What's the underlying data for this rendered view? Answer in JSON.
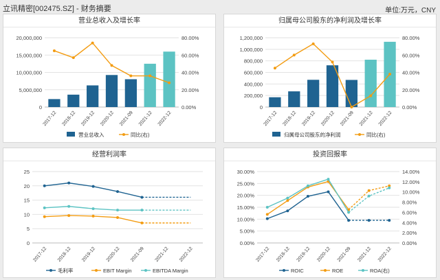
{
  "header": {
    "title": "立讯精密[002475.SZ] - 财务摘要",
    "unit": "单位:万元，CNY"
  },
  "chart_data": [
    {
      "type": "bar",
      "title": "营业总收入及增长率",
      "categories": [
        "2017-12",
        "2018-12",
        "2019-12",
        "2020-12",
        "2021-09",
        "2021-12",
        "2022-12"
      ],
      "series": [
        {
          "name": "营业总收入",
          "kind": "bar",
          "axis": "left",
          "values": [
            2300000,
            3580000,
            6250000,
            9250000,
            8030000,
            12500000,
            16000000
          ],
          "colors": [
            "#1f6391",
            "#1f6391",
            "#1f6391",
            "#1f6391",
            "#1f6391",
            "#5cc3c3",
            "#5cc3c3"
          ]
        },
        {
          "name": "同比(右)",
          "kind": "line",
          "axis": "right",
          "color": "#f39c12",
          "values": [
            65,
            57,
            74,
            48,
            36,
            36,
            28
          ]
        }
      ],
      "yleft": {
        "min": 0,
        "max": 20000000,
        "ticks": [
          "0",
          "5,000,000",
          "10,000,000",
          "15,000,000",
          "20,000,000"
        ]
      },
      "yright": {
        "min": 0,
        "max": 80,
        "ticks": [
          "0.00%",
          "20.00%",
          "40.00%",
          "60.00%",
          "80.00%"
        ]
      }
    },
    {
      "type": "bar",
      "title": "归属母公司股东的净利润及增长率",
      "categories": [
        "2017-12",
        "2018-12",
        "2019-12",
        "2020-12",
        "2021-09",
        "2021-12",
        "2022-12"
      ],
      "series": [
        {
          "name": "归属母公司股东的净利润",
          "kind": "bar",
          "axis": "left",
          "values": [
            170000,
            272000,
            472000,
            723000,
            470000,
            820000,
            1130000
          ],
          "colors": [
            "#1f6391",
            "#1f6391",
            "#1f6391",
            "#1f6391",
            "#1f6391",
            "#5cc3c3",
            "#5cc3c3"
          ]
        },
        {
          "name": "同比(右)",
          "kind": "line",
          "axis": "right",
          "color": "#f39c12",
          "values": [
            45,
            60,
            73,
            52,
            0,
            13,
            38
          ]
        }
      ],
      "yleft": {
        "min": 0,
        "max": 1200000,
        "ticks": [
          "0",
          "200,000",
          "400,000",
          "600,000",
          "800,000",
          "1,000,000",
          "1,200,000"
        ]
      },
      "yright": {
        "min": 0,
        "max": 80,
        "ticks": [
          "0.00%",
          "20.00%",
          "40.00%",
          "60.00%",
          "80.00%"
        ]
      }
    },
    {
      "type": "line",
      "title": "经营利润率",
      "categories": [
        "2017-12",
        "2018-12",
        "2019-12",
        "2020-12",
        "2021-09",
        "2021-12",
        "2022-12"
      ],
      "series": [
        {
          "name": "毛利率",
          "axis": "left",
          "color": "#1f6391",
          "values": [
            20,
            21,
            19.8,
            18,
            16,
            16,
            16
          ]
        },
        {
          "name": "EBIT Margin",
          "axis": "left",
          "color": "#f39c12",
          "values": [
            9.2,
            9.6,
            9.4,
            8.9,
            7.0,
            7.0,
            7.0
          ]
        },
        {
          "name": "EBITDA Margin",
          "axis": "left",
          "color": "#5cc3c3",
          "values": [
            12.3,
            12.8,
            12.0,
            11.5,
            11.5,
            11.5,
            11.5
          ]
        }
      ],
      "yleft": {
        "min": 0,
        "max": 25,
        "ticks": [
          "0",
          "5",
          "10",
          "15",
          "20",
          "25"
        ]
      }
    },
    {
      "type": "line",
      "title": "投资回报率",
      "categories": [
        "2017-12",
        "2018-12",
        "2019-12",
        "2020-12",
        "2021-09",
        "2021-12",
        "2022-12"
      ],
      "series": [
        {
          "name": "ROIC",
          "axis": "left",
          "color": "#1f6391",
          "values": [
            10.2,
            13.5,
            19.6,
            21.5,
            9.5,
            9.5,
            9.5
          ]
        },
        {
          "name": "ROE",
          "axis": "left",
          "color": "#f39c12",
          "values": [
            12.0,
            17.8,
            23.5,
            25.8,
            14.0,
            22.0,
            24.0
          ]
        },
        {
          "name": "ROA(右)",
          "axis": "right",
          "color": "#5cc3c3",
          "values": [
            7.0,
            8.8,
            11.2,
            12.5,
            6.0,
            9.2,
            10.8
          ]
        }
      ],
      "yleft": {
        "min": 0,
        "max": 30,
        "ticks": [
          "0.00%",
          "5.00%",
          "10.00%",
          "15.00%",
          "20.00%",
          "25.00%",
          "30.00%"
        ]
      },
      "yright": {
        "min": 0,
        "max": 14,
        "ticks": [
          "0.00%",
          "2.00%",
          "4.00%",
          "6.00%",
          "8.00%",
          "10.00%",
          "12.00%",
          "14.00%"
        ]
      }
    }
  ]
}
